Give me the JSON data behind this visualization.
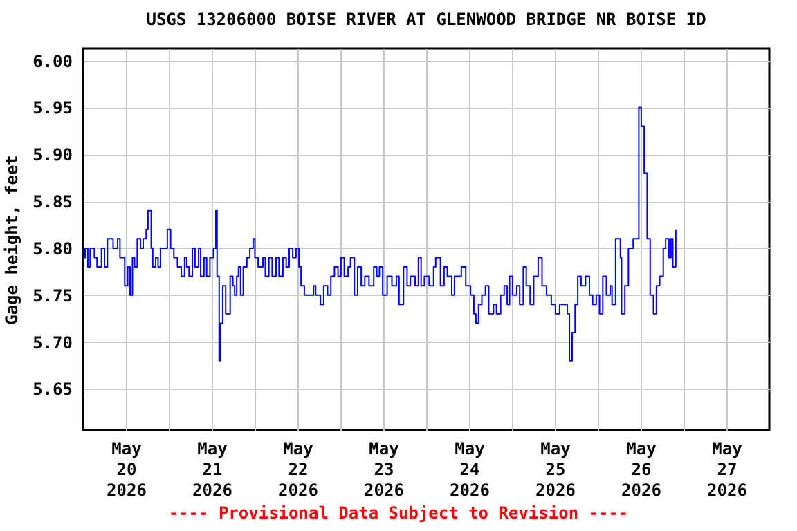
{
  "chart_data": {
    "type": "step",
    "title": "USGS 13206000 BOISE RIVER AT GLENWOOD BRIDGE NR BOISE ID",
    "ylabel": "Gage height, feet",
    "annotations": [
      "---- Provisional Data Subject to Revision ----"
    ],
    "x": [
      "2026-05-20T00:00",
      "2026-05-20T00:35",
      "2026-05-20T01:20",
      "2026-05-20T02:00",
      "2026-05-20T03:10",
      "2026-05-20T03:55",
      "2026-05-20T05:10",
      "2026-05-20T06:00",
      "2026-05-20T06:50",
      "2026-05-20T08:25",
      "2026-05-20T09:40",
      "2026-05-20T10:20",
      "2026-05-20T11:25",
      "2026-05-20T11:40",
      "2026-05-20T12:30",
      "2026-05-20T13:10",
      "2026-05-20T13:50",
      "2026-05-20T14:25",
      "2026-05-20T15:10",
      "2026-05-20T16:05",
      "2026-05-20T16:50",
      "2026-05-20T17:40",
      "2026-05-20T18:10",
      "2026-05-20T18:40",
      "2026-05-20T19:05",
      "2026-05-20T19:30",
      "2026-05-20T20:20",
      "2026-05-20T21:00",
      "2026-05-20T21:40",
      "2026-05-20T22:35",
      "2026-05-20T23:35",
      "2026-05-21T00:30",
      "2026-05-21T01:25",
      "2026-05-21T02:25",
      "2026-05-21T03:30",
      "2026-05-21T04:25",
      "2026-05-21T05:00",
      "2026-05-21T05:40",
      "2026-05-21T06:35",
      "2026-05-21T07:20",
      "2026-05-21T08:20",
      "2026-05-21T08:55",
      "2026-05-21T09:50",
      "2026-05-21T10:35",
      "2026-05-21T11:30",
      "2026-05-21T12:30",
      "2026-05-21T13:10",
      "2026-05-21T13:30",
      "2026-05-21T14:05",
      "2026-05-21T14:25",
      "2026-05-21T15:05",
      "2026-05-21T15:55",
      "2026-05-21T16:35",
      "2026-05-21T17:10",
      "2026-05-21T17:55",
      "2026-05-21T18:25",
      "2026-05-21T19:00",
      "2026-05-21T19:30",
      "2026-05-21T20:05",
      "2026-05-21T20:50",
      "2026-05-21T21:50",
      "2026-05-21T22:40",
      "2026-05-21T23:35",
      "2026-05-22T00:05",
      "2026-05-22T01:00",
      "2026-05-22T02:20",
      "2026-05-22T03:00",
      "2026-05-22T04:00",
      "2026-05-22T04:55",
      "2026-05-22T06:00",
      "2026-05-22T06:50",
      "2026-05-22T07:55",
      "2026-05-22T08:50",
      "2026-05-22T09:40",
      "2026-05-22T10:40",
      "2026-05-22T11:35",
      "2026-05-22T12:25",
      "2026-05-22T13:00",
      "2026-05-22T13:55",
      "2026-05-22T15:10",
      "2026-05-22T16:30",
      "2026-05-22T17:05",
      "2026-05-22T18:25",
      "2026-05-22T19:20",
      "2026-05-22T20:25",
      "2026-05-22T21:20",
      "2026-05-22T22:20",
      "2026-05-22T23:20",
      "2026-05-23T00:10",
      "2026-05-23T01:05",
      "2026-05-23T02:10",
      "2026-05-23T02:50",
      "2026-05-23T03:55",
      "2026-05-23T04:50",
      "2026-05-23T05:50",
      "2026-05-23T06:50",
      "2026-05-23T08:00",
      "2026-05-23T09:20",
      "2026-05-23T10:10",
      "2026-05-23T10:55",
      "2026-05-23T11:50",
      "2026-05-23T13:05",
      "2026-05-23T14:25",
      "2026-05-23T15:40",
      "2026-05-23T16:25",
      "2026-05-23T17:40",
      "2026-05-23T18:40",
      "2026-05-23T19:35",
      "2026-05-23T20:55",
      "2026-05-23T21:50",
      "2026-05-23T22:35",
      "2026-05-23T23:30",
      "2026-05-24T00:50",
      "2026-05-24T02:05",
      "2026-05-24T02:40",
      "2026-05-24T04:00",
      "2026-05-24T05:00",
      "2026-05-24T05:55",
      "2026-05-24T07:10",
      "2026-05-24T07:55",
      "2026-05-24T08:55",
      "2026-05-24T09:50",
      "2026-05-24T11:05",
      "2026-05-24T12:25",
      "2026-05-24T13:20",
      "2026-05-24T13:55",
      "2026-05-24T14:40",
      "2026-05-24T15:35",
      "2026-05-24T16:35",
      "2026-05-24T17:30",
      "2026-05-24T18:50",
      "2026-05-24T19:40",
      "2026-05-24T20:50",
      "2026-05-24T21:50",
      "2026-05-24T22:40",
      "2026-05-24T23:20",
      "2026-05-25T00:10",
      "2026-05-25T01:20",
      "2026-05-25T02:10",
      "2026-05-25T03:10",
      "2026-05-25T04:00",
      "2026-05-25T05:05",
      "2026-05-25T06:05",
      "2026-05-25T07:20",
      "2026-05-25T08:25",
      "2026-05-25T09:40",
      "2026-05-25T11:00",
      "2026-05-25T12:10",
      "2026-05-25T13:20",
      "2026-05-25T14:10",
      "2026-05-25T15:30",
      "2026-05-25T16:05",
      "2026-05-25T16:50",
      "2026-05-25T17:40",
      "2026-05-25T18:25",
      "2026-05-25T19:20",
      "2026-05-25T20:35",
      "2026-05-25T21:40",
      "2026-05-25T22:35",
      "2026-05-25T23:35",
      "2026-05-26T00:30",
      "2026-05-26T01:25",
      "2026-05-26T02:25",
      "2026-05-26T03:30",
      "2026-05-26T04:00",
      "2026-05-26T05:00",
      "2026-05-26T06:20",
      "2026-05-26T06:40",
      "2026-05-26T07:35",
      "2026-05-26T08:35",
      "2026-05-26T09:55",
      "2026-05-26T10:40",
      "2026-05-26T11:30",
      "2026-05-26T12:10",
      "2026-05-26T13:00",
      "2026-05-26T13:50",
      "2026-05-26T14:40",
      "2026-05-26T15:35",
      "2026-05-26T16:25",
      "2026-05-26T17:20",
      "2026-05-26T18:20",
      "2026-05-26T19:00",
      "2026-05-26T19:55",
      "2026-05-26T20:30",
      "2026-05-26T21:00",
      "2026-05-26T21:50"
    ],
    "series": [
      {
        "color": "#0000ff",
        "values": [
          5.79,
          5.8,
          5.78,
          5.8,
          5.79,
          5.78,
          5.8,
          5.78,
          5.81,
          5.8,
          5.81,
          5.79,
          5.79,
          5.76,
          5.78,
          5.75,
          5.79,
          5.78,
          5.81,
          5.8,
          5.81,
          5.82,
          5.84,
          5.84,
          5.8,
          5.78,
          5.79,
          5.78,
          5.8,
          5.8,
          5.82,
          5.8,
          5.79,
          5.78,
          5.77,
          5.79,
          5.78,
          5.77,
          5.8,
          5.78,
          5.8,
          5.77,
          5.79,
          5.77,
          5.79,
          5.8,
          5.84,
          5.77,
          5.68,
          5.72,
          5.76,
          5.73,
          5.73,
          5.77,
          5.76,
          5.75,
          5.77,
          5.78,
          5.75,
          5.78,
          5.79,
          5.8,
          5.81,
          5.79,
          5.78,
          5.79,
          5.77,
          5.79,
          5.77,
          5.79,
          5.77,
          5.79,
          5.78,
          5.8,
          5.79,
          5.8,
          5.78,
          5.76,
          5.75,
          5.75,
          5.76,
          5.75,
          5.74,
          5.76,
          5.75,
          5.77,
          5.78,
          5.77,
          5.79,
          5.77,
          5.78,
          5.79,
          5.75,
          5.78,
          5.76,
          5.77,
          5.76,
          5.78,
          5.77,
          5.78,
          5.75,
          5.77,
          5.76,
          5.77,
          5.74,
          5.78,
          5.76,
          5.77,
          5.76,
          5.79,
          5.76,
          5.77,
          5.76,
          5.78,
          5.79,
          5.76,
          5.78,
          5.77,
          5.75,
          5.77,
          5.77,
          5.78,
          5.76,
          5.75,
          5.73,
          5.72,
          5.74,
          5.75,
          5.76,
          5.73,
          5.74,
          5.73,
          5.75,
          5.76,
          5.74,
          5.77,
          5.75,
          5.76,
          5.74,
          5.78,
          5.76,
          5.74,
          5.77,
          5.79,
          5.76,
          5.75,
          5.74,
          5.73,
          5.74,
          5.74,
          5.73,
          5.68,
          5.71,
          5.74,
          5.77,
          5.76,
          5.77,
          5.75,
          5.74,
          5.75,
          5.73,
          5.77,
          5.75,
          5.76,
          5.74,
          5.81,
          5.79,
          5.73,
          5.76,
          5.8,
          5.81,
          5.81,
          5.95,
          5.93,
          5.88,
          5.81,
          5.75,
          5.73,
          5.76,
          5.77,
          5.8,
          5.81,
          5.79,
          5.81,
          5.78,
          5.82
        ]
      }
    ],
    "xlim": [
      "2026-05-20T00:00",
      "2026-05-28T00:00"
    ],
    "xticks": [
      {
        "value": "2026-05-20T12:00",
        "label": "May\n20\n2026"
      },
      {
        "value": "2026-05-21T12:00",
        "label": "May\n21\n2026"
      },
      {
        "value": "2026-05-22T12:00",
        "label": "May\n22\n2026"
      },
      {
        "value": "2026-05-23T12:00",
        "label": "May\n23\n2026"
      },
      {
        "value": "2026-05-24T12:00",
        "label": "May\n24\n2026"
      },
      {
        "value": "2026-05-25T12:00",
        "label": "May\n25\n2026"
      },
      {
        "value": "2026-05-26T12:00",
        "label": "May\n26\n2026"
      },
      {
        "value": "2026-05-27T12:00",
        "label": "May\n27\n2026"
      },
      {
        "value": "2026-05-21T00:00",
        "label": null
      },
      {
        "value": "2026-05-22T00:00",
        "label": null
      },
      {
        "value": "2026-05-23T00:00",
        "label": null
      },
      {
        "value": "2026-05-24T00:00",
        "label": null
      },
      {
        "value": "2026-05-25T00:00",
        "label": null
      },
      {
        "value": "2026-05-26T00:00",
        "label": null
      },
      {
        "value": "2026-05-27T00:00",
        "label": null
      }
    ],
    "ylim": [
      5.606,
      6.013
    ],
    "yticks": [
      {
        "value": 5.65,
        "label": "5.65"
      },
      {
        "value": 5.7,
        "label": "5.70"
      },
      {
        "value": 5.75,
        "label": "5.75"
      },
      {
        "value": 5.8,
        "label": "5.80"
      },
      {
        "value": 5.85,
        "label": "5.85"
      },
      {
        "value": 5.9,
        "label": "5.90"
      },
      {
        "value": 5.95,
        "label": "5.95"
      },
      {
        "value": 6.0,
        "label": "6.00"
      }
    ],
    "grid": true
  }
}
